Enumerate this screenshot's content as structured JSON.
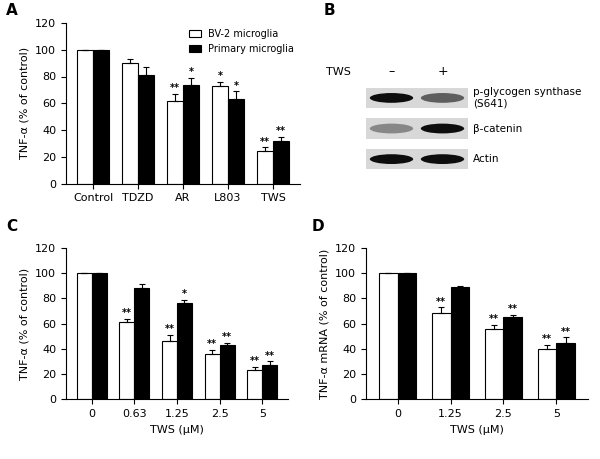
{
  "chart_data": [
    {
      "panel_label": "A",
      "type": "bar",
      "categories": [
        "Control",
        "TDZD",
        "AR",
        "L803",
        "TWS"
      ],
      "ylabel": "TNF-α (% of control)",
      "ylim": [
        0,
        120
      ],
      "yticks": [
        0,
        20,
        40,
        60,
        80,
        100,
        120
      ],
      "legend": "upper right",
      "series": [
        {
          "name": "BV-2 microglia",
          "color": "#ffffff",
          "values": [
            100,
            90,
            62,
            73,
            24
          ],
          "errors": [
            0,
            3,
            5,
            3,
            3
          ],
          "significance": [
            null,
            null,
            "**",
            "*",
            "**"
          ]
        },
        {
          "name": "Primary microglia",
          "color": "#000000",
          "values": [
            100,
            81,
            74,
            63,
            32
          ],
          "errors": [
            0,
            6,
            5,
            6,
            3
          ],
          "significance": [
            null,
            null,
            "*",
            "*",
            "**"
          ]
        }
      ]
    },
    {
      "panel_label": "C",
      "type": "bar",
      "categories": [
        "0",
        "0.63",
        "1.25",
        "2.5",
        "5"
      ],
      "xlabel": "TWS (μM)",
      "ylabel": "TNF-α (% of control)",
      "ylim": [
        0,
        120
      ],
      "yticks": [
        0,
        20,
        40,
        60,
        80,
        100,
        120
      ],
      "series": [
        {
          "name": "BV-2 microglia",
          "color": "#ffffff",
          "values": [
            100,
            61,
            46,
            36,
            23
          ],
          "errors": [
            0,
            3,
            5,
            3,
            3
          ],
          "significance": [
            null,
            "**",
            "**",
            "**",
            "**"
          ]
        },
        {
          "name": "Primary microglia",
          "color": "#000000",
          "values": [
            100,
            88,
            76,
            43,
            27
          ],
          "errors": [
            0,
            3,
            3,
            2,
            3
          ],
          "significance": [
            null,
            null,
            "*",
            "**",
            "**"
          ]
        }
      ]
    },
    {
      "panel_label": "D",
      "type": "bar",
      "categories": [
        "0",
        "1.25",
        "2.5",
        "5"
      ],
      "xlabel": "TWS (μM)",
      "ylabel": "TNF-α mRNA (% of control)",
      "ylim": [
        0,
        120
      ],
      "yticks": [
        0,
        20,
        40,
        60,
        80,
        100,
        120
      ],
      "series": [
        {
          "name": "BV-2 microglia",
          "color": "#ffffff",
          "values": [
            100,
            68,
            56,
            40
          ],
          "errors": [
            0,
            5,
            3,
            3
          ],
          "significance": [
            null,
            "**",
            "**",
            "**"
          ]
        },
        {
          "name": "Primary microglia",
          "color": "#000000",
          "values": [
            100,
            89,
            65,
            45
          ],
          "errors": [
            0,
            1,
            2,
            4
          ],
          "significance": [
            null,
            null,
            "**",
            "**"
          ]
        }
      ]
    }
  ],
  "blot": {
    "panel_label": "B",
    "treatment": "TWS",
    "lanes": [
      "–",
      "+"
    ],
    "rows": [
      {
        "label": "p-glycogen synthase\n(S641)",
        "intensity": [
          1.0,
          0.6
        ]
      },
      {
        "label": "β-catenin",
        "intensity": [
          0.4,
          1.0
        ]
      },
      {
        "label": "Actin",
        "intensity": [
          1.0,
          1.0
        ]
      }
    ]
  }
}
